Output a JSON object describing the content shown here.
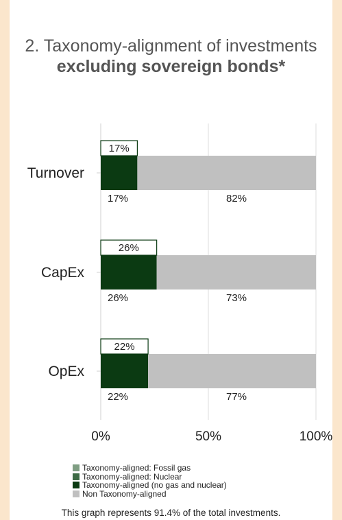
{
  "title_plain": "2. Taxonomy-alignment of investments ",
  "title_bold": "excluding sovereign bonds*",
  "chart_data": {
    "type": "bar",
    "orientation": "horizontal",
    "stacked": true,
    "categories": [
      "Turnover",
      "CapEx",
      "OpEx"
    ],
    "series": [
      {
        "name": "Taxonomy-aligned: Fossil gas",
        "color": "#7f9e83",
        "values": [
          0,
          0,
          0
        ]
      },
      {
        "name": "Taxonomy-aligned: Nuclear",
        "color": "#3d6b45",
        "values": [
          0,
          0,
          0
        ]
      },
      {
        "name": "Taxonomy-aligned (no gas and nuclear)",
        "color": "#0b3a12",
        "values": [
          17,
          26,
          22
        ]
      },
      {
        "name": "Non Taxonomy-aligned",
        "color": "#c0c0c0",
        "values": [
          82,
          73,
          77
        ]
      }
    ],
    "aligned_labels": [
      "17%",
      "26%",
      "22%"
    ],
    "callout_labels": [
      "17%",
      "26%",
      "22%"
    ],
    "non_aligned_labels": [
      "82%",
      "73%",
      "77%"
    ],
    "x_ticks": [
      "0%",
      "50%",
      "100%"
    ],
    "xlim": [
      0,
      100
    ],
    "grid": true,
    "legend_position": "bottom"
  },
  "footnote": "This graph represents 91.4% of the total investments."
}
